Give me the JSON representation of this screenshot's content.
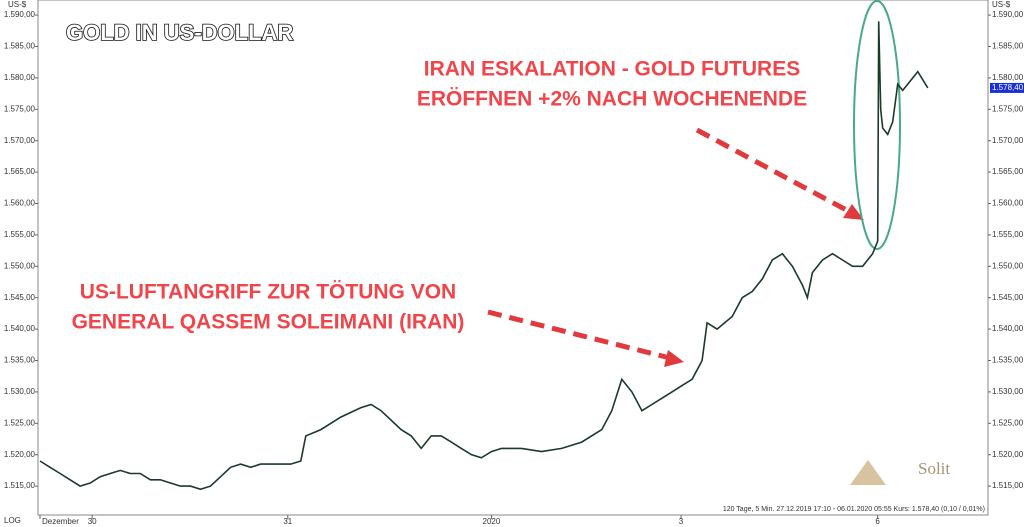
{
  "chart_data": {
    "type": "line",
    "title": "GOLD IN US-DOLLAR",
    "y_axis_label": "US-$",
    "scale_label": "LOG",
    "brand": "Solit",
    "footer": "120 Tage, 5 Min. 27.12.2019 17:10 - 06.01.2020 05:55 Kurs: 1.578,40 (0,10 / 0,01%)",
    "last_price": {
      "value": 1578.4,
      "label": "1.578,40"
    },
    "annotations": [
      "IRAN ESKALATION - GOLD FUTURES",
      "ERÖFFNEN +2% NACH WOCHENENDE",
      "US-LUFTANGRIFF  ZUR  TÖTUNG  VON",
      "GENERAL QASSEM  SOLEIMANI (IRAN)"
    ],
    "grid": false,
    "xlim": [
      0,
      94.7
    ],
    "xticks": [
      {
        "value": 0.2,
        "label": "Dezember"
      },
      {
        "value": 5.4,
        "label": "30"
      },
      {
        "value": 24.9,
        "label": "31"
      },
      {
        "value": 45.2,
        "label": "2020"
      },
      {
        "value": 64.1,
        "label": "3"
      },
      {
        "value": 83.7,
        "label": "6"
      }
    ],
    "ylim": [
      1510.4,
      1592.4
    ],
    "yticks": [
      {
        "value": 1515,
        "label": "1.515,00"
      },
      {
        "value": 1520,
        "label": "1.520,00"
      },
      {
        "value": 1525,
        "label": "1.525,00"
      },
      {
        "value": 1530,
        "label": "1.530,00"
      },
      {
        "value": 1535,
        "label": "1.535,00"
      },
      {
        "value": 1540,
        "label": "1.540,00"
      },
      {
        "value": 1545,
        "label": "1.545,00"
      },
      {
        "value": 1550,
        "label": "1.550,00"
      },
      {
        "value": 1555,
        "label": "1.555,00"
      },
      {
        "value": 1560,
        "label": "1.560,00"
      },
      {
        "value": 1565,
        "label": "1.565,00"
      },
      {
        "value": 1570,
        "label": "1.570,00"
      },
      {
        "value": 1575,
        "label": "1.575,00"
      },
      {
        "value": 1580,
        "label": "1.580,00"
      },
      {
        "value": 1585,
        "label": "1.585,00"
      },
      {
        "value": 1590,
        "label": "1.590,00"
      }
    ],
    "x": [
      0.2,
      1.2,
      2.2,
      3.2,
      4.2,
      5.2,
      6.2,
      7.2,
      8.2,
      9.2,
      10.2,
      11.2,
      12.2,
      13.2,
      14.2,
      15.2,
      16.2,
      17.2,
      18.2,
      19.2,
      20.2,
      21.2,
      22.2,
      23.2,
      24.2,
      25.2,
      26.2,
      26.7,
      28.2,
      30.2,
      32.2,
      33.2,
      34.2,
      36.2,
      37.2,
      38.2,
      39.2,
      40.2,
      41.2,
      42.2,
      43.2,
      44.2,
      45.2,
      46.2,
      48.2,
      50.2,
      52.2,
      54.2,
      56.2,
      57.2,
      58.2,
      59.2,
      60.2,
      61.2,
      62.2,
      63.2,
      64.2,
      65.2,
      66.2,
      66.7,
      67.7,
      69.2,
      70.2,
      71.2,
      72.2,
      73.2,
      74.2,
      75.2,
      76.2,
      76.7,
      77.2,
      78.2,
      79.2,
      80.2,
      81.2,
      82.2,
      83.2,
      83.7,
      83.8,
      84,
      84.2,
      84.7,
      85.2,
      85.7,
      86.2,
      87.2,
      87.7,
      88.7
    ],
    "series": [
      {
        "color": "#1c3a28",
        "values": [
          1519,
          1518,
          1517,
          1516,
          1515,
          1515.5,
          1516.5,
          1517,
          1517.5,
          1517,
          1517,
          1516,
          1516,
          1515.5,
          1515,
          1515,
          1514.5,
          1515,
          1516.5,
          1518,
          1518.5,
          1518,
          1518.5,
          1518.5,
          1518.5,
          1518.5,
          1519,
          1523,
          1524,
          1526,
          1527.5,
          1528,
          1527,
          1524,
          1523,
          1521,
          1523,
          1523,
          1522,
          1521,
          1520,
          1519.5,
          1520.5,
          1521,
          1521,
          1520.5,
          1521,
          1522,
          1524,
          1527,
          1532,
          1530,
          1527,
          1528,
          1529,
          1530,
          1531,
          1532,
          1535,
          1541,
          1540,
          1542,
          1545,
          1546,
          1548,
          1551,
          1552,
          1550,
          1547,
          1545,
          1549,
          1551,
          1552,
          1551,
          1550,
          1550,
          1552,
          1554,
          1589,
          1575,
          1572,
          1571,
          1573,
          1579,
          1578,
          1580,
          1581,
          1578.4
        ]
      }
    ]
  }
}
